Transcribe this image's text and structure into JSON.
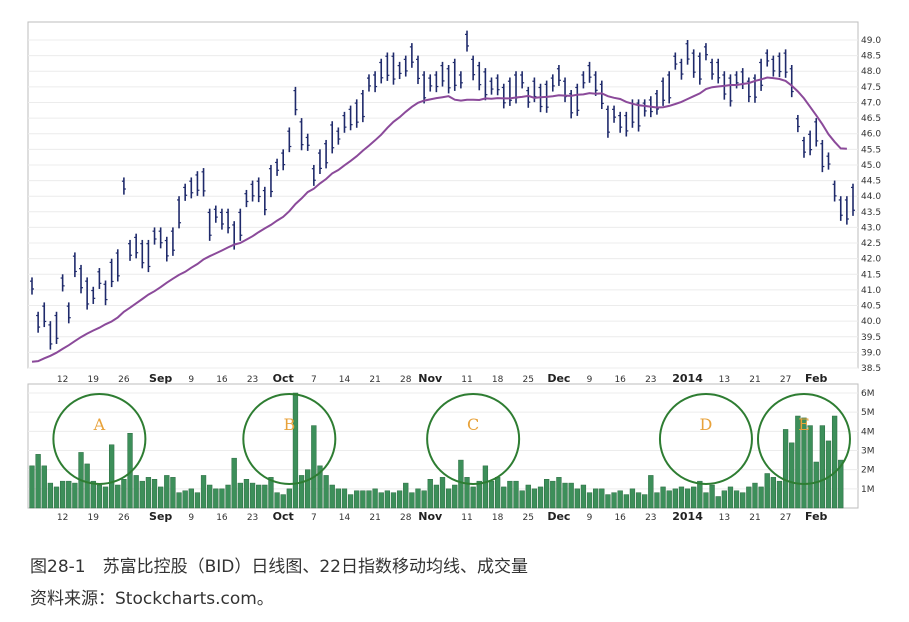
{
  "chart_data": [
    {
      "type": "line",
      "ylim": [
        38.5,
        49.0
      ],
      "y_ticks": [
        "49.0",
        "48.5",
        "48.0",
        "47.5",
        "47.0",
        "46.5",
        "46.0",
        "45.5",
        "45.0",
        "44.5",
        "44.0",
        "43.5",
        "43.0",
        "42.5",
        "42.0",
        "41.5",
        "41.0",
        "40.5",
        "40.0",
        "39.5",
        "39.0",
        "38.5"
      ],
      "x_labels": [
        {
          "i": 5,
          "text": "12",
          "bold": false
        },
        {
          "i": 10,
          "text": "19",
          "bold": false
        },
        {
          "i": 15,
          "text": "26",
          "bold": false
        },
        {
          "i": 21,
          "text": "Sep",
          "bold": true
        },
        {
          "i": 26,
          "text": "9",
          "bold": false
        },
        {
          "i": 31,
          "text": "16",
          "bold": false
        },
        {
          "i": 36,
          "text": "23",
          "bold": false
        },
        {
          "i": 41,
          "text": "Oct",
          "bold": true
        },
        {
          "i": 46,
          "text": "7",
          "bold": false
        },
        {
          "i": 51,
          "text": "14",
          "bold": false
        },
        {
          "i": 56,
          "text": "21",
          "bold": false
        },
        {
          "i": 61,
          "text": "28",
          "bold": false
        },
        {
          "i": 65,
          "text": "Nov",
          "bold": true
        },
        {
          "i": 71,
          "text": "11",
          "bold": false
        },
        {
          "i": 76,
          "text": "18",
          "bold": false
        },
        {
          "i": 81,
          "text": "25",
          "bold": false
        },
        {
          "i": 86,
          "text": "Dec",
          "bold": true
        },
        {
          "i": 91,
          "text": "9",
          "bold": false
        },
        {
          "i": 96,
          "text": "16",
          "bold": false
        },
        {
          "i": 101,
          "text": "23",
          "bold": false
        },
        {
          "i": 107,
          "text": "2014",
          "bold": true
        },
        {
          "i": 113,
          "text": "13",
          "bold": false
        },
        {
          "i": 118,
          "text": "21",
          "bold": false
        },
        {
          "i": 123,
          "text": "27",
          "bold": false
        },
        {
          "i": 128,
          "text": "Feb",
          "bold": true
        }
      ],
      "series": [
        {
          "style": "ohlc",
          "color": "#1f2a6b",
          "highs": [
            41.4,
            40.3,
            40.6,
            40.0,
            40.3,
            41.5,
            40.6,
            42.2,
            41.8,
            41.4,
            41.1,
            41.7,
            41.3,
            42.0,
            42.3,
            44.6,
            42.6,
            42.8,
            42.6,
            42.6,
            43.0,
            43.0,
            42.7,
            43.0,
            44.0,
            44.4,
            44.6,
            44.8,
            44.9,
            43.6,
            43.7,
            43.6,
            43.6,
            43.2,
            43.6,
            44.2,
            44.5,
            44.6,
            44.3,
            45.0,
            45.2,
            45.5,
            46.2,
            47.5,
            46.5,
            46.0,
            45.0,
            45.5,
            45.8,
            46.4,
            46.2,
            46.7,
            46.9,
            47.1,
            47.4,
            47.9,
            48.0,
            48.4,
            48.6,
            48.6,
            48.3,
            48.5,
            48.9,
            48.5,
            48.0,
            47.9,
            48.0,
            48.3,
            48.2,
            48.4,
            48.0,
            49.3,
            48.5,
            48.3,
            48.1,
            47.8,
            47.9,
            47.6,
            47.8,
            48.0,
            48.0,
            47.5,
            47.8,
            47.6,
            47.7,
            47.9,
            48.2,
            47.8,
            47.4,
            47.6,
            48.0,
            48.3,
            48.0,
            47.7,
            46.9,
            46.9,
            46.7,
            46.7,
            47.1,
            47.1,
            47.1,
            47.2,
            47.4,
            47.8,
            48.0,
            48.6,
            48.4,
            49.0,
            48.7,
            48.6,
            48.9,
            48.4,
            48.4,
            48.0,
            47.9,
            48.0,
            48.1,
            47.8,
            47.9,
            48.4,
            48.7,
            48.5,
            48.6,
            48.7,
            48.2,
            46.6,
            45.9,
            46.1,
            46.5,
            45.8,
            45.4,
            44.5,
            44.0,
            44.0,
            44.4
          ]
        },
        {
          "name": "",
          "style": "line",
          "color": "#8b4a9a",
          "values": [
            38.7,
            38.72,
            38.81,
            38.89,
            38.99,
            39.11,
            39.23,
            39.36,
            39.49,
            39.6,
            39.7,
            39.79,
            39.9,
            39.99,
            40.12,
            40.3,
            40.43,
            40.57,
            40.71,
            40.85,
            40.96,
            41.09,
            41.23,
            41.36,
            41.48,
            41.58,
            41.71,
            41.83,
            41.98,
            42.08,
            42.17,
            42.26,
            42.36,
            42.45,
            42.5,
            42.61,
            42.72,
            42.85,
            42.97,
            43.08,
            43.22,
            43.34,
            43.52,
            43.75,
            43.93,
            44.13,
            44.24,
            44.41,
            44.55,
            44.73,
            44.84,
            44.99,
            45.13,
            45.28,
            45.46,
            45.62,
            45.79,
            45.97,
            46.19,
            46.38,
            46.53,
            46.7,
            46.86,
            46.99,
            47.06,
            47.1,
            47.14,
            47.17,
            47.2,
            47.09,
            47.06,
            47.09,
            47.09,
            47.08,
            47.13,
            47.12,
            47.14,
            47.13,
            47.13,
            47.16,
            47.18,
            47.21,
            47.15,
            47.17,
            47.18,
            47.2,
            47.23,
            47.22,
            47.21,
            47.25,
            47.26,
            47.3,
            47.28,
            47.29,
            47.2,
            47.15,
            47.11,
            47.02,
            46.96,
            46.91,
            46.89,
            46.86,
            46.84,
            46.85,
            46.89,
            46.95,
            47.02,
            47.11,
            47.2,
            47.29,
            47.43,
            47.49,
            47.51,
            47.53,
            47.56,
            47.56,
            47.59,
            47.62,
            47.69,
            47.74,
            47.8,
            47.78,
            47.75,
            47.69,
            47.54,
            47.35,
            47.13,
            46.86,
            46.59,
            46.3,
            45.98,
            45.74,
            45.53,
            45.52
          ]
        }
      ]
    },
    {
      "type": "bar",
      "ylabel": "",
      "y_ticks": [
        "6M",
        "5M",
        "4M",
        "3M",
        "2M",
        "1M"
      ],
      "ylim": [
        0,
        6
      ],
      "x_labels": [
        {
          "i": 5,
          "text": "12",
          "bold": false
        },
        {
          "i": 10,
          "text": "19",
          "bold": false
        },
        {
          "i": 15,
          "text": "26",
          "bold": false
        },
        {
          "i": 21,
          "text": "Sep",
          "bold": true
        },
        {
          "i": 26,
          "text": "9",
          "bold": false
        },
        {
          "i": 31,
          "text": "16",
          "bold": false
        },
        {
          "i": 36,
          "text": "23",
          "bold": false
        },
        {
          "i": 41,
          "text": "Oct",
          "bold": true
        },
        {
          "i": 46,
          "text": "7",
          "bold": false
        },
        {
          "i": 51,
          "text": "14",
          "bold": false
        },
        {
          "i": 56,
          "text": "21",
          "bold": false
        },
        {
          "i": 61,
          "text": "28",
          "bold": false
        },
        {
          "i": 65,
          "text": "Nov",
          "bold": true
        },
        {
          "i": 71,
          "text": "11",
          "bold": false
        },
        {
          "i": 76,
          "text": "18",
          "bold": false
        },
        {
          "i": 81,
          "text": "25",
          "bold": false
        },
        {
          "i": 86,
          "text": "Dec",
          "bold": true
        },
        {
          "i": 91,
          "text": "9",
          "bold": false
        },
        {
          "i": 96,
          "text": "16",
          "bold": false
        },
        {
          "i": 101,
          "text": "23",
          "bold": false
        },
        {
          "i": 107,
          "text": "2014",
          "bold": true
        },
        {
          "i": 113,
          "text": "13",
          "bold": false
        },
        {
          "i": 118,
          "text": "21",
          "bold": false
        },
        {
          "i": 123,
          "text": "27",
          "bold": false
        },
        {
          "i": 128,
          "text": "Feb",
          "bold": true
        }
      ],
      "color": "#3d8f5a",
      "values": [
        2.2,
        2.8,
        2.2,
        1.3,
        1.1,
        1.4,
        1.4,
        1.3,
        2.9,
        2.3,
        1.4,
        1.2,
        1.1,
        3.3,
        1.2,
        1.5,
        3.9,
        1.7,
        1.4,
        1.6,
        1.5,
        1.1,
        1.7,
        1.6,
        0.8,
        0.9,
        1.0,
        0.8,
        1.7,
        1.2,
        1.0,
        1.0,
        1.2,
        2.6,
        1.3,
        1.5,
        1.3,
        1.2,
        1.2,
        1.6,
        0.8,
        0.7,
        1.0,
        6.0,
        1.7,
        2.0,
        4.3,
        2.2,
        1.7,
        1.2,
        1.0,
        1.0,
        0.7,
        0.9,
        0.9,
        0.9,
        1.0,
        0.8,
        0.9,
        0.8,
        0.9,
        1.3,
        0.8,
        1.0,
        0.9,
        1.5,
        1.2,
        1.6,
        1.0,
        1.2,
        2.5,
        1.6,
        1.1,
        1.4,
        2.2,
        1.4,
        1.6,
        1.1,
        1.4,
        1.4,
        0.9,
        1.2,
        1.0,
        1.1,
        1.5,
        1.4,
        1.6,
        1.3,
        1.3,
        1.0,
        1.2,
        0.8,
        1.0,
        1.0,
        0.7,
        0.8,
        0.9,
        0.7,
        1.0,
        0.8,
        0.7,
        1.7,
        0.8,
        1.1,
        0.9,
        1.0,
        1.1,
        1.0,
        1.1,
        1.4,
        0.8,
        1.2,
        0.6,
        0.9,
        1.1,
        0.9,
        0.8,
        1.1,
        1.3,
        1.1,
        1.8,
        1.6,
        1.4,
        4.1,
        3.4,
        4.8,
        4.7,
        4.3,
        2.4,
        4.3,
        3.5,
        4.8,
        2.5
      ]
    }
  ],
  "annotations": {
    "circles": [
      {
        "label": "A",
        "center_index": 11
      },
      {
        "label": "B",
        "center_index": 42
      },
      {
        "label": "C",
        "center_index": 72
      },
      {
        "label": "D",
        "center_index": 110
      },
      {
        "label": "E",
        "center_index": 126
      }
    ],
    "circle_color": "#2e7d32",
    "label_color": "#e8a23a"
  },
  "caption": {
    "line1": "图28-1　苏富比控股（BID）日线图、22日指数移动均线、成交量",
    "line2": "资料来源：Stockcharts.com。"
  }
}
